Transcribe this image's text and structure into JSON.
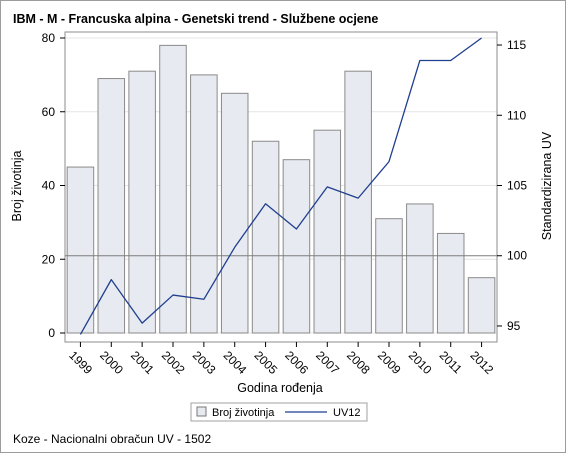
{
  "chart_data": {
    "type": "bar",
    "title": "IBM - M - Francuska alpina - Genetski trend - Službene ocjene",
    "xlabel": "Godina rođenja",
    "ylabel": "Broj životinja",
    "y2label": "Standardizirana UV",
    "categories": [
      "1999",
      "2000",
      "2001",
      "2002",
      "2003",
      "2004",
      "2005",
      "2006",
      "2007",
      "2008",
      "2009",
      "2010",
      "2011",
      "2012"
    ],
    "ylim": [
      0,
      80
    ],
    "yticks": [
      0,
      20,
      40,
      60,
      80
    ],
    "y2lim": [
      94.5,
      115.5
    ],
    "y2ticks": [
      95,
      100,
      105,
      110,
      115
    ],
    "y2_reference": 100,
    "series": [
      {
        "name": "Broj životinja",
        "type": "bar",
        "axis": "left",
        "color": "#e8eaf1",
        "values": [
          45,
          69,
          71,
          78,
          70,
          65,
          52,
          47,
          55,
          71,
          31,
          35,
          27,
          15
        ]
      },
      {
        "name": "UV12",
        "type": "line",
        "axis": "right",
        "color": "#1f3f8f",
        "values": [
          94.4,
          98.3,
          95.2,
          97.2,
          96.9,
          100.6,
          103.7,
          101.9,
          104.9,
          104.1,
          106.7,
          113.9,
          113.9,
          115.5
        ]
      }
    ],
    "grid": true,
    "legend_position": "bottom"
  },
  "footnote": "Koze - Nacionalni obračun UV - 1502"
}
